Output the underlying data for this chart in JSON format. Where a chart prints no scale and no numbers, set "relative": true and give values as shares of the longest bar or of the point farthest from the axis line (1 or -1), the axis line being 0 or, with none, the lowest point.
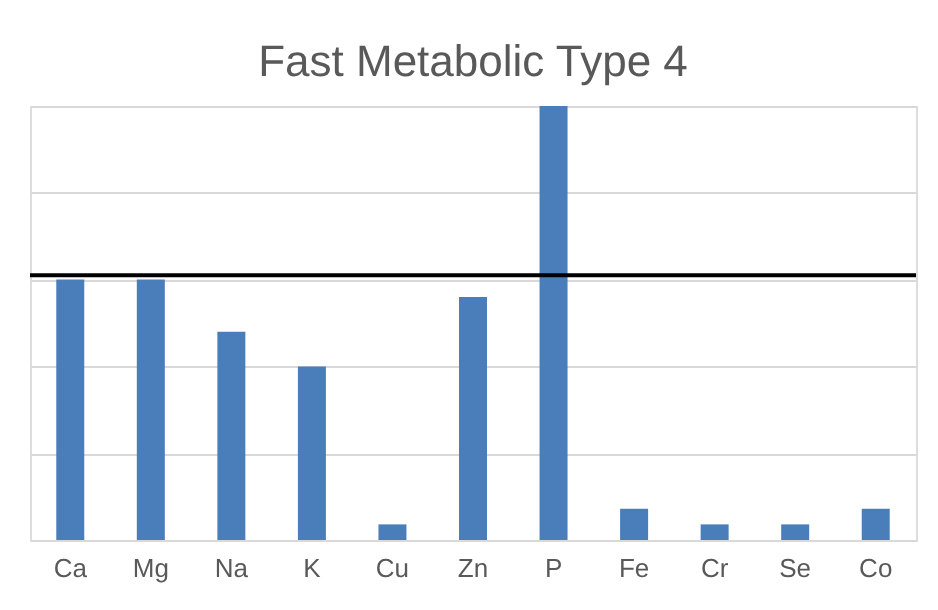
{
  "chart_data": {
    "type": "bar",
    "title": "Fast Metabolic Type 4",
    "relative": true,
    "grid": "y",
    "categories": [
      "Ca",
      "Mg",
      "Na",
      "K",
      "Cu",
      "Zn",
      "P",
      "Fe",
      "Cr",
      "Se",
      "Co"
    ],
    "series": [
      {
        "color": "#4a7ebb",
        "values": [
          0.6,
          0.6,
          0.48,
          0.4,
          0.036,
          0.56,
          1,
          0.072,
          0.036,
          0.036,
          0.072
        ]
      }
    ],
    "ref_lines": [
      {
        "axis": "y",
        "value": 0.61,
        "color": "#000000"
      }
    ]
  }
}
